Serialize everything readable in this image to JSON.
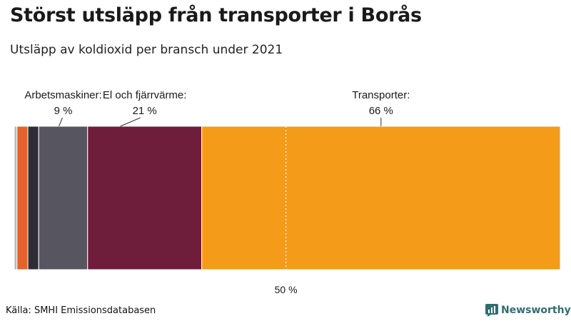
{
  "chart_data": {
    "type": "bar",
    "orientation": "horizontal-stacked",
    "title": "Störst utsläpp från transporter i Borås",
    "subtitle": "Utsläpp av koldioxid per bransch under 2021",
    "series": [
      {
        "value": 0.5,
        "color": "#b7b7b7"
      },
      {
        "value": 2,
        "color": "#e3632a"
      },
      {
        "value": 2,
        "color": "#2f2c36"
      },
      {
        "name": "Arbetsmaskiner:",
        "value": 9,
        "label": "9 %",
        "color": "#575560"
      },
      {
        "name": "El och fjärrvärme:",
        "value": 21,
        "label": "21 %",
        "color": "#6e1d3b"
      },
      {
        "name": "Transporter:",
        "value": 66,
        "label": "66 %",
        "color": "#f59b1a"
      }
    ],
    "reference_line": {
      "value": 50,
      "label": "50 %"
    },
    "xlim": [
      0,
      100
    ]
  },
  "source": "Källa: SMHI Emissionsdatabasen",
  "logo": {
    "text": "Newsworthy",
    "icon": "newsworthy-logo-icon",
    "color": "#2f6e73"
  }
}
